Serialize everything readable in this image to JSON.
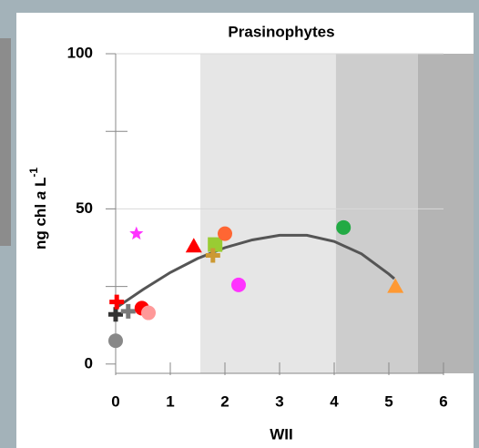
{
  "chart_data": {
    "type": "scatter",
    "title": "Prasinophytes",
    "xlabel": "WII",
    "ylabel_parts": [
      "ng chl ",
      "a",
      " L",
      "-1"
    ],
    "xlim": [
      0,
      6.55
    ],
    "ylim": [
      -3,
      100
    ],
    "xticks": [
      0,
      1,
      2,
      3,
      4,
      5,
      6
    ],
    "yticks": [
      0,
      50,
      100
    ],
    "yminor_ticks": [
      25,
      75
    ],
    "grid": true,
    "regions": [
      {
        "x": [
          1.55,
          4.03
        ],
        "color": "#e6e6e6"
      },
      {
        "x": [
          4.03,
          5.53
        ],
        "color": "#cdcdcd"
      },
      {
        "x": [
          5.53,
          6.55
        ],
        "color": "#b4b4b4"
      }
    ],
    "series": [
      {
        "marker": "circle",
        "color": "#888888",
        "x": [
          0
        ],
        "values": [
          7.5
        ]
      },
      {
        "marker": "cross",
        "color": "#333333",
        "x": [
          0
        ],
        "values": [
          16
        ]
      },
      {
        "marker": "cross",
        "color": "#7a7a7a",
        "x": [
          0.23
        ],
        "values": [
          17
        ]
      },
      {
        "marker": "cross",
        "color": "#ff0000",
        "x": [
          0.02
        ],
        "values": [
          20
        ]
      },
      {
        "marker": "circle",
        "color": "#ff0000",
        "x": [
          0.48
        ],
        "values": [
          18
        ]
      },
      {
        "marker": "circle",
        "color": "#ff9999",
        "x": [
          0.6
        ],
        "values": [
          16.5
        ]
      },
      {
        "marker": "star",
        "color": "#ff33ff",
        "x": [
          0.38
        ],
        "values": [
          42
        ]
      },
      {
        "marker": "triangle",
        "color": "#ff0000",
        "x": [
          1.43
        ],
        "values": [
          38
        ]
      },
      {
        "marker": "square",
        "color": "#99cc33",
        "x": [
          1.82
        ],
        "values": [
          38.5
        ]
      },
      {
        "marker": "cross",
        "color": "#cc9933",
        "x": [
          1.78
        ],
        "values": [
          35
        ]
      },
      {
        "marker": "circle",
        "color": "#ff6633",
        "x": [
          2.0
        ],
        "values": [
          42
        ]
      },
      {
        "marker": "circle",
        "color": "#ff33ff",
        "x": [
          2.25
        ],
        "values": [
          25.5
        ]
      },
      {
        "marker": "circle",
        "color": "#22aa44",
        "x": [
          4.17
        ],
        "values": [
          44
        ]
      },
      {
        "marker": "triangle",
        "color": "#ff9933",
        "x": [
          5.12
        ],
        "values": [
          25
        ]
      }
    ],
    "fit": {
      "color": "#555555",
      "x": [
        0,
        0.5,
        1,
        1.5,
        2,
        2.5,
        3,
        3.5,
        4,
        4.5,
        5,
        5.1
      ],
      "values": [
        18,
        24,
        29.5,
        34,
        37.5,
        40,
        41.5,
        41.5,
        39.5,
        35.5,
        29,
        27.5
      ]
    }
  }
}
